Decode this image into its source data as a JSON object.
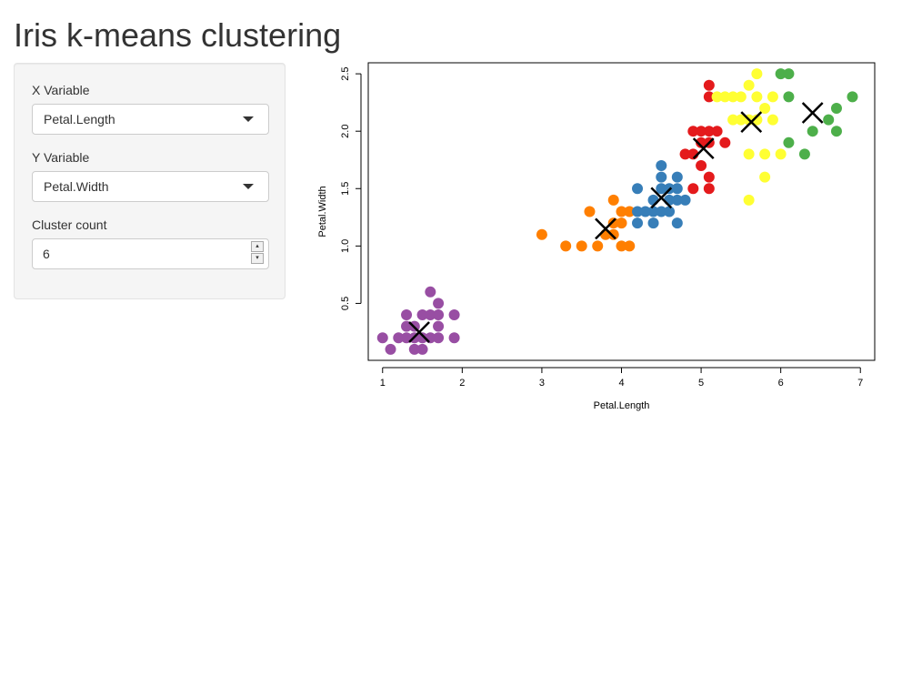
{
  "page": {
    "title": "Iris k-means clustering"
  },
  "sidebar": {
    "x_variable": {
      "label": "X Variable",
      "selected": "Petal.Length"
    },
    "y_variable": {
      "label": "Y Variable",
      "selected": "Petal.Width"
    },
    "cluster_count": {
      "label": "Cluster count",
      "value": "6",
      "up_glyph": "▴",
      "down_glyph": "▾"
    }
  },
  "chart_data": {
    "type": "scatter",
    "xlabel": "Petal.Length",
    "ylabel": "Petal.Width",
    "xlim": [
      0.82,
      7.18
    ],
    "ylim": [
      0.004,
      2.596
    ],
    "xticks": [
      1,
      2,
      3,
      4,
      5,
      6,
      7
    ],
    "yticks": [
      0.5,
      1.0,
      1.5,
      2.0,
      2.5
    ],
    "ytick_labels": [
      "0.5",
      "1.0",
      "1.5",
      "2.0",
      "2.5"
    ],
    "grid": false,
    "legend": "none",
    "series": [
      {
        "color": "#984ea3",
        "points": [
          [
            1.0,
            0.2
          ],
          [
            1.1,
            0.1
          ],
          [
            1.2,
            0.2
          ],
          [
            1.3,
            0.2
          ],
          [
            1.3,
            0.3
          ],
          [
            1.3,
            0.4
          ],
          [
            1.4,
            0.1
          ],
          [
            1.4,
            0.2
          ],
          [
            1.4,
            0.3
          ],
          [
            1.5,
            0.1
          ],
          [
            1.5,
            0.2
          ],
          [
            1.5,
            0.4
          ],
          [
            1.6,
            0.2
          ],
          [
            1.6,
            0.4
          ],
          [
            1.6,
            0.6
          ],
          [
            1.7,
            0.2
          ],
          [
            1.7,
            0.3
          ],
          [
            1.7,
            0.4
          ],
          [
            1.7,
            0.5
          ],
          [
            1.9,
            0.2
          ],
          [
            1.9,
            0.4
          ]
        ]
      },
      {
        "color": "#ff7f00",
        "points": [
          [
            3.0,
            1.1
          ],
          [
            3.3,
            1.0
          ],
          [
            3.5,
            1.0
          ],
          [
            3.6,
            1.3
          ],
          [
            3.7,
            1.0
          ],
          [
            3.8,
            1.1
          ],
          [
            3.9,
            1.1
          ],
          [
            3.9,
            1.2
          ],
          [
            3.9,
            1.4
          ],
          [
            4.0,
            1.0
          ],
          [
            4.0,
            1.2
          ],
          [
            4.0,
            1.3
          ],
          [
            4.1,
            1.0
          ],
          [
            4.1,
            1.3
          ]
        ]
      },
      {
        "color": "#377eb8",
        "points": [
          [
            4.2,
            1.2
          ],
          [
            4.2,
            1.3
          ],
          [
            4.2,
            1.5
          ],
          [
            4.3,
            1.3
          ],
          [
            4.4,
            1.2
          ],
          [
            4.4,
            1.3
          ],
          [
            4.4,
            1.4
          ],
          [
            4.5,
            1.3
          ],
          [
            4.5,
            1.5
          ],
          [
            4.5,
            1.6
          ],
          [
            4.5,
            1.7
          ],
          [
            4.6,
            1.3
          ],
          [
            4.6,
            1.4
          ],
          [
            4.6,
            1.5
          ],
          [
            4.7,
            1.2
          ],
          [
            4.7,
            1.4
          ],
          [
            4.7,
            1.5
          ],
          [
            4.7,
            1.6
          ],
          [
            4.8,
            1.4
          ]
        ]
      },
      {
        "color": "#e41a1c",
        "points": [
          [
            4.8,
            1.8
          ],
          [
            4.9,
            1.5
          ],
          [
            4.9,
            1.8
          ],
          [
            4.9,
            2.0
          ],
          [
            5.0,
            1.7
          ],
          [
            5.0,
            1.9
          ],
          [
            5.0,
            2.0
          ],
          [
            5.1,
            1.5
          ],
          [
            5.1,
            1.6
          ],
          [
            5.1,
            1.9
          ],
          [
            5.1,
            2.0
          ],
          [
            5.1,
            2.3
          ],
          [
            5.1,
            2.4
          ],
          [
            5.2,
            2.0
          ],
          [
            5.3,
            1.9
          ]
        ]
      },
      {
        "color": "#ffff33",
        "points": [
          [
            5.2,
            2.3
          ],
          [
            5.3,
            2.3
          ],
          [
            5.4,
            2.3
          ],
          [
            5.4,
            2.1
          ],
          [
            5.5,
            2.1
          ],
          [
            5.5,
            2.3
          ],
          [
            5.6,
            1.4
          ],
          [
            5.6,
            1.8
          ],
          [
            5.6,
            2.1
          ],
          [
            5.6,
            2.4
          ],
          [
            5.7,
            2.1
          ],
          [
            5.7,
            2.3
          ],
          [
            5.7,
            2.5
          ],
          [
            5.8,
            1.6
          ],
          [
            5.8,
            1.8
          ],
          [
            5.8,
            2.2
          ],
          [
            5.9,
            2.1
          ],
          [
            5.9,
            2.3
          ],
          [
            6.0,
            1.8
          ]
        ]
      },
      {
        "color": "#4daf4a",
        "points": [
          [
            6.0,
            2.5
          ],
          [
            6.1,
            1.9
          ],
          [
            6.1,
            2.3
          ],
          [
            6.1,
            2.5
          ],
          [
            6.3,
            1.8
          ],
          [
            6.4,
            2.0
          ],
          [
            6.6,
            2.1
          ],
          [
            6.7,
            2.0
          ],
          [
            6.7,
            2.2
          ],
          [
            6.9,
            2.3
          ]
        ]
      }
    ],
    "centers": [
      [
        1.46,
        0.25
      ],
      [
        3.8,
        1.15
      ],
      [
        4.5,
        1.42
      ],
      [
        5.03,
        1.85
      ],
      [
        5.63,
        2.08
      ],
      [
        6.4,
        2.16
      ]
    ],
    "center_marker": "X"
  }
}
